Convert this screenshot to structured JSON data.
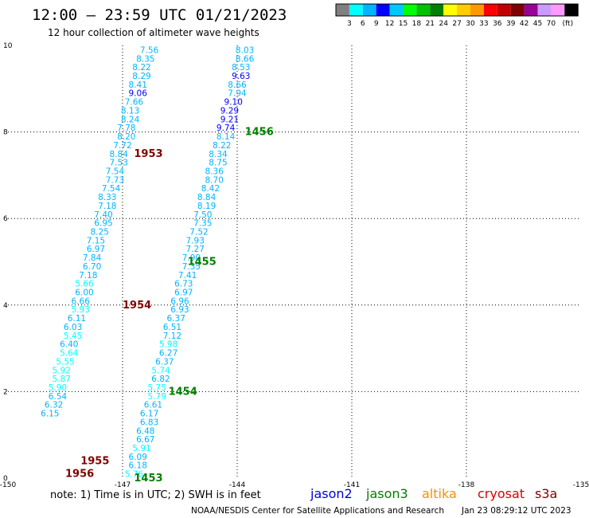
{
  "header": {
    "title": "12:00 – 23:59 UTC 01/21/2023",
    "subtitle": "12 hour collection of altimeter wave heights"
  },
  "scale": {
    "colors": [
      "#808080",
      "#00ffff",
      "#00b4ff",
      "#0000ff",
      "#00c8ff",
      "#00ff00",
      "#00c000",
      "#008000",
      "#ffff00",
      "#ffcc00",
      "#ff9900",
      "#ff0000",
      "#c00000",
      "#800000",
      "#990099",
      "#cc99ff",
      "#ff99ff",
      "#000000"
    ],
    "labels": [
      "3",
      "6",
      "9",
      "12",
      "15",
      "18",
      "21",
      "24",
      "27",
      "30",
      "33",
      "36",
      "39",
      "42",
      "45",
      "70",
      "(ft)"
    ]
  },
  "note": "note:  1) Time is in UTC; 2) SWH is in feet",
  "satellites": [
    {
      "name": "jason2",
      "color": "#0000dd"
    },
    {
      "name": "jason3",
      "color": "#008000"
    },
    {
      "name": "altika",
      "color": "#ff8c00"
    },
    {
      "name": "cryosat",
      "color": "#dd0000"
    },
    {
      "name": "s3a",
      "color": "#800000"
    }
  ],
  "footer": {
    "credit": "NOAA/NESDIS Center for Satellite Applications and Research",
    "timestamp": "Jan 23 08:29:12 UTC 2023"
  },
  "chart_data": {
    "type": "scatter",
    "xlim": [
      -150,
      -135
    ],
    "ylim": [
      0,
      10
    ],
    "x_ticks": [
      "-150",
      "-147",
      "-144",
      "-141",
      "-138",
      "-135"
    ],
    "y_ticks": [
      "0",
      "2",
      "4",
      "6",
      "8",
      "10"
    ],
    "grid": true,
    "tracks": [
      {
        "name": "cryosat track",
        "color": "#800000",
        "points": [
          {
            "lon": -146.3,
            "lat": 9.9,
            "v": "7.56",
            "c": "#00b4ff"
          },
          {
            "lon": -146.4,
            "lat": 9.7,
            "v": "8.35",
            "c": "#00b4ff"
          },
          {
            "lon": -146.5,
            "lat": 9.5,
            "v": "8.22",
            "c": "#00b4ff"
          },
          {
            "lon": -146.5,
            "lat": 9.3,
            "v": "8.29",
            "c": "#00b4ff"
          },
          {
            "lon": -146.6,
            "lat": 9.1,
            "v": "8.41",
            "c": "#00b4ff"
          },
          {
            "lon": -146.6,
            "lat": 8.9,
            "v": "9.06",
            "c": "#0000ff"
          },
          {
            "lon": -146.7,
            "lat": 8.7,
            "v": "7.66",
            "c": "#00b4ff"
          },
          {
            "lon": -146.8,
            "lat": 8.5,
            "v": "8.13",
            "c": "#00b4ff"
          },
          {
            "lon": -146.8,
            "lat": 8.3,
            "v": "8.24",
            "c": "#00b4ff"
          },
          {
            "lon": -146.9,
            "lat": 8.1,
            "v": "7.78",
            "c": "#00b4ff"
          },
          {
            "lon": -146.9,
            "lat": 7.9,
            "v": "8.20",
            "c": "#00b4ff"
          },
          {
            "lon": -147.0,
            "lat": 7.7,
            "v": "7.72",
            "c": "#00b4ff"
          },
          {
            "lon": -147.1,
            "lat": 7.5,
            "v": "8.84",
            "c": "#00b4ff"
          },
          {
            "lon": -147.1,
            "lat": 7.3,
            "v": "7.53",
            "c": "#00b4ff"
          },
          {
            "lon": -147.2,
            "lat": 7.1,
            "v": "7.54",
            "c": "#00b4ff"
          },
          {
            "lon": -147.2,
            "lat": 6.9,
            "v": "7.73",
            "c": "#00b4ff"
          },
          {
            "lon": -147.3,
            "lat": 6.7,
            "v": "7.54",
            "c": "#00b4ff"
          },
          {
            "lon": -147.4,
            "lat": 6.5,
            "v": "8.33",
            "c": "#00b4ff"
          },
          {
            "lon": -147.4,
            "lat": 6.3,
            "v": "7.18",
            "c": "#00b4ff"
          },
          {
            "lon": -147.5,
            "lat": 6.1,
            "v": "7.40",
            "c": "#00b4ff"
          },
          {
            "lon": -147.5,
            "lat": 5.9,
            "v": "6.95",
            "c": "#00b4ff"
          },
          {
            "lon": -147.6,
            "lat": 5.7,
            "v": "8.25",
            "c": "#00b4ff"
          },
          {
            "lon": -147.7,
            "lat": 5.5,
            "v": "7.15",
            "c": "#00b4ff"
          },
          {
            "lon": -147.7,
            "lat": 5.3,
            "v": "6.97",
            "c": "#00b4ff"
          },
          {
            "lon": -147.8,
            "lat": 5.1,
            "v": "7.84",
            "c": "#00b4ff"
          },
          {
            "lon": -147.8,
            "lat": 4.9,
            "v": "6.70",
            "c": "#00b4ff"
          },
          {
            "lon": -147.9,
            "lat": 4.7,
            "v": "7.18",
            "c": "#00b4ff"
          },
          {
            "lon": -148.0,
            "lat": 4.5,
            "v": "5.66",
            "c": "#00ffff"
          },
          {
            "lon": -148.0,
            "lat": 4.3,
            "v": "6.00",
            "c": "#00b4ff"
          },
          {
            "lon": -148.1,
            "lat": 4.1,
            "v": "6.66",
            "c": "#00b4ff"
          },
          {
            "lon": -148.1,
            "lat": 3.9,
            "v": "5.93",
            "c": "#00ffff"
          },
          {
            "lon": -148.2,
            "lat": 3.7,
            "v": "6.11",
            "c": "#00b4ff"
          },
          {
            "lon": -148.3,
            "lat": 3.5,
            "v": "6.03",
            "c": "#00b4ff"
          },
          {
            "lon": -148.3,
            "lat": 3.3,
            "v": "5.45",
            "c": "#00ffff"
          },
          {
            "lon": -148.4,
            "lat": 3.1,
            "v": "6.40",
            "c": "#00b4ff"
          },
          {
            "lon": -148.4,
            "lat": 2.9,
            "v": "5.64",
            "c": "#00ffff"
          },
          {
            "lon": -148.5,
            "lat": 2.7,
            "v": "5.55",
            "c": "#00ffff"
          },
          {
            "lon": -148.6,
            "lat": 2.5,
            "v": "5.92",
            "c": "#00ffff"
          },
          {
            "lon": -148.6,
            "lat": 2.3,
            "v": "5.87",
            "c": "#00ffff"
          },
          {
            "lon": -148.7,
            "lat": 2.1,
            "v": "5.90",
            "c": "#00ffff"
          },
          {
            "lon": -148.7,
            "lat": 1.9,
            "v": "6.54",
            "c": "#00b4ff"
          },
          {
            "lon": -148.8,
            "lat": 1.7,
            "v": "6.32",
            "c": "#00b4ff"
          },
          {
            "lon": -148.9,
            "lat": 1.5,
            "v": "6.15",
            "c": "#00b4ff"
          }
        ],
        "times": [
          {
            "lon": -146.7,
            "lat": 7.5,
            "t": "1953"
          },
          {
            "lon": -147.0,
            "lat": 4.0,
            "t": "1954"
          },
          {
            "lon": -148.1,
            "lat": 0.4,
            "t": "1955"
          },
          {
            "lon": -148.5,
            "lat": 0.1,
            "t": "1956"
          }
        ]
      },
      {
        "name": "jason3 track",
        "color": "#008000",
        "points": [
          {
            "lon": -143.8,
            "lat": 9.9,
            "v": "8.03",
            "c": "#00b4ff"
          },
          {
            "lon": -143.8,
            "lat": 9.7,
            "v": "8.66",
            "c": "#00b4ff"
          },
          {
            "lon": -143.9,
            "lat": 9.5,
            "v": "8.53",
            "c": "#00b4ff"
          },
          {
            "lon": -143.9,
            "lat": 9.3,
            "v": "9.63",
            "c": "#0000ff"
          },
          {
            "lon": -144.0,
            "lat": 9.1,
            "v": "8.66",
            "c": "#00b4ff"
          },
          {
            "lon": -144.0,
            "lat": 8.9,
            "v": "7.94",
            "c": "#00b4ff"
          },
          {
            "lon": -144.1,
            "lat": 8.7,
            "v": "9.10",
            "c": "#0000ff"
          },
          {
            "lon": -144.2,
            "lat": 8.5,
            "v": "9.29",
            "c": "#0000ff"
          },
          {
            "lon": -144.2,
            "lat": 8.3,
            "v": "9.21",
            "c": "#0000ff"
          },
          {
            "lon": -144.3,
            "lat": 8.1,
            "v": "9.74",
            "c": "#0000ff"
          },
          {
            "lon": -144.3,
            "lat": 7.9,
            "v": "8.14",
            "c": "#00b4ff"
          },
          {
            "lon": -144.4,
            "lat": 7.7,
            "v": "8.22",
            "c": "#00b4ff"
          },
          {
            "lon": -144.5,
            "lat": 7.5,
            "v": "8.34",
            "c": "#00b4ff"
          },
          {
            "lon": -144.5,
            "lat": 7.3,
            "v": "8.75",
            "c": "#00b4ff"
          },
          {
            "lon": -144.6,
            "lat": 7.1,
            "v": "8.36",
            "c": "#00b4ff"
          },
          {
            "lon": -144.6,
            "lat": 6.9,
            "v": "8.70",
            "c": "#00b4ff"
          },
          {
            "lon": -144.7,
            "lat": 6.7,
            "v": "8.42",
            "c": "#00b4ff"
          },
          {
            "lon": -144.8,
            "lat": 6.5,
            "v": "8.84",
            "c": "#00b4ff"
          },
          {
            "lon": -144.8,
            "lat": 6.3,
            "v": "8.19",
            "c": "#00b4ff"
          },
          {
            "lon": -144.9,
            "lat": 6.1,
            "v": "7.50",
            "c": "#00b4ff"
          },
          {
            "lon": -144.9,
            "lat": 5.9,
            "v": "7.35",
            "c": "#00b4ff"
          },
          {
            "lon": -145.0,
            "lat": 5.7,
            "v": "7.52",
            "c": "#00b4ff"
          },
          {
            "lon": -145.1,
            "lat": 5.5,
            "v": "7.93",
            "c": "#00b4ff"
          },
          {
            "lon": -145.1,
            "lat": 5.3,
            "v": "7.27",
            "c": "#00b4ff"
          },
          {
            "lon": -145.2,
            "lat": 5.1,
            "v": "7.90",
            "c": "#00b4ff"
          },
          {
            "lon": -145.2,
            "lat": 4.9,
            "v": "7.35",
            "c": "#00b4ff"
          },
          {
            "lon": -145.3,
            "lat": 4.7,
            "v": "7.41",
            "c": "#00b4ff"
          },
          {
            "lon": -145.4,
            "lat": 4.5,
            "v": "6.73",
            "c": "#00b4ff"
          },
          {
            "lon": -145.4,
            "lat": 4.3,
            "v": "6.97",
            "c": "#00b4ff"
          },
          {
            "lon": -145.5,
            "lat": 4.1,
            "v": "6.96",
            "c": "#00b4ff"
          },
          {
            "lon": -145.5,
            "lat": 3.9,
            "v": "6.93",
            "c": "#00b4ff"
          },
          {
            "lon": -145.6,
            "lat": 3.7,
            "v": "6.37",
            "c": "#00b4ff"
          },
          {
            "lon": -145.7,
            "lat": 3.5,
            "v": "6.51",
            "c": "#00b4ff"
          },
          {
            "lon": -145.7,
            "lat": 3.3,
            "v": "7.12",
            "c": "#00b4ff"
          },
          {
            "lon": -145.8,
            "lat": 3.1,
            "v": "5.98",
            "c": "#00ffff"
          },
          {
            "lon": -145.8,
            "lat": 2.9,
            "v": "6.27",
            "c": "#00b4ff"
          },
          {
            "lon": -145.9,
            "lat": 2.7,
            "v": "6.37",
            "c": "#00b4ff"
          },
          {
            "lon": -146.0,
            "lat": 2.5,
            "v": "5.74",
            "c": "#00ffff"
          },
          {
            "lon": -146.0,
            "lat": 2.3,
            "v": "6.82",
            "c": "#00b4ff"
          },
          {
            "lon": -146.1,
            "lat": 2.1,
            "v": "5.75",
            "c": "#00ffff"
          },
          {
            "lon": -146.1,
            "lat": 1.9,
            "v": "5.79",
            "c": "#00ffff"
          },
          {
            "lon": -146.2,
            "lat": 1.7,
            "v": "6.61",
            "c": "#00b4ff"
          },
          {
            "lon": -146.3,
            "lat": 1.5,
            "v": "6.17",
            "c": "#00b4ff"
          },
          {
            "lon": -146.3,
            "lat": 1.3,
            "v": "6.83",
            "c": "#00b4ff"
          },
          {
            "lon": -146.4,
            "lat": 1.1,
            "v": "6.48",
            "c": "#00b4ff"
          },
          {
            "lon": -146.4,
            "lat": 0.9,
            "v": "6.67",
            "c": "#00b4ff"
          },
          {
            "lon": -146.5,
            "lat": 0.7,
            "v": "5.91",
            "c": "#00ffff"
          },
          {
            "lon": -146.6,
            "lat": 0.5,
            "v": "6.09",
            "c": "#00b4ff"
          },
          {
            "lon": -146.6,
            "lat": 0.3,
            "v": "6.18",
            "c": "#00b4ff"
          },
          {
            "lon": -146.7,
            "lat": 0.1,
            "v": "5.76",
            "c": "#00ffff"
          }
        ],
        "times": [
          {
            "lon": -143.8,
            "lat": 8.0,
            "t": "1456"
          },
          {
            "lon": -145.3,
            "lat": 5.0,
            "t": "1455"
          },
          {
            "lon": -145.8,
            "lat": 2.0,
            "t": "1454"
          },
          {
            "lon": -146.7,
            "lat": 0.0,
            "t": "1453"
          }
        ]
      }
    ]
  }
}
